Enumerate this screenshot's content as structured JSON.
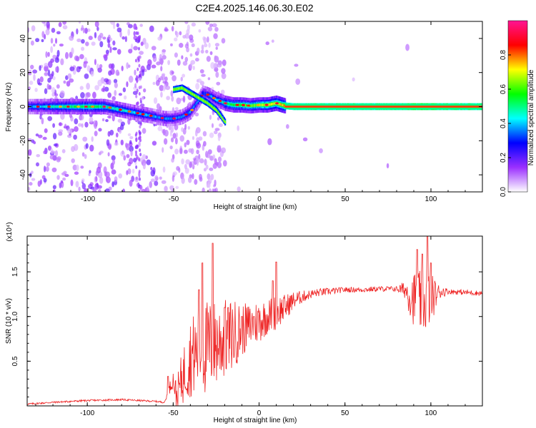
{
  "title": "C2E4.2025.146.06.30.E02",
  "chart_data": [
    {
      "type": "heatmap",
      "xlabel": "Height of straight line (km)",
      "ylabel": "Frequency (Hz)",
      "xlim": [
        -135,
        130
      ],
      "ylim": [
        -50,
        50
      ],
      "x_ticks": [
        -100,
        -50,
        0,
        50,
        100
      ],
      "x_tick_labels": [
        "-100",
        "-50",
        "0",
        "50",
        "100"
      ],
      "y_ticks": [
        -40,
        -20,
        0,
        20,
        40
      ],
      "y_tick_labels": [
        "-40",
        "-20",
        "0",
        "20",
        "40"
      ],
      "colorbar": {
        "label": "Normalized spectral amplitude",
        "range": [
          0,
          1
        ],
        "ticks": [
          0.0,
          0.2,
          0.4,
          0.6,
          0.8
        ],
        "tick_labels": [
          "0.0",
          "0.2",
          "0.4",
          "0.6",
          "0.8"
        ],
        "colors": [
          "#ffffff",
          "#9b30ff",
          "#0000ff",
          "#00ffff",
          "#00ff00",
          "#ffff00",
          "#ff0000",
          "#ff1493"
        ]
      },
      "ridge": {
        "x": [
          -133,
          -120,
          -110,
          -100,
          -90,
          -85,
          -80,
          -75,
          -70,
          -65,
          -60,
          -55,
          -50,
          -45,
          -40,
          -38,
          -35,
          -33,
          -30,
          -28,
          -25,
          -22,
          -20,
          -15,
          -10,
          -5,
          0,
          5,
          10,
          15,
          20,
          40,
          60,
          80,
          90,
          95,
          100,
          110,
          120,
          130
        ],
        "y": [
          0,
          0,
          0,
          0,
          0,
          -1,
          -2,
          -3,
          -4,
          -5,
          -6,
          -7,
          -7,
          -6,
          -3,
          0,
          4,
          8,
          7,
          6,
          4,
          3,
          2,
          1,
          1,
          0.5,
          1,
          1,
          2,
          0.5,
          0,
          0,
          0,
          0,
          0,
          0,
          0,
          0,
          0,
          0
        ],
        "amplitude": [
          0.35,
          0.45,
          0.5,
          0.55,
          0.5,
          0.45,
          0.45,
          0.4,
          0.4,
          0.4,
          0.35,
          0.35,
          0.35,
          0.35,
          0.35,
          0.35,
          0.35,
          0.3,
          0.35,
          0.4,
          0.4,
          0.45,
          0.5,
          0.55,
          0.6,
          0.6,
          0.65,
          0.7,
          0.7,
          0.75,
          0.8,
          0.8,
          0.8,
          0.8,
          0.85,
          0.9,
          0.85,
          0.8,
          0.8,
          0.8
        ]
      },
      "secondary_ridge": {
        "x": [
          -50,
          -45,
          -40,
          -35,
          -30,
          -25,
          -22,
          -20
        ],
        "y": [
          10,
          11,
          8,
          5,
          2,
          -2,
          -6,
          -9
        ]
      }
    },
    {
      "type": "line",
      "xlabel": "Height of straight line (km)",
      "ylabel": "SNR (10 * v/v)",
      "scale_label": "(x10⁴)",
      "xlim": [
        -135,
        130
      ],
      "ylim": [
        0,
        1.9
      ],
      "x_ticks": [
        -100,
        -50,
        0,
        50,
        100
      ],
      "x_tick_labels": [
        "-100",
        "-50",
        "0",
        "50",
        "100"
      ],
      "y_ticks": [
        0.5,
        1.0,
        1.5
      ],
      "y_tick_labels": [
        "0.5",
        "1.0",
        "1.5"
      ],
      "line_color": "#ee2222",
      "baseline": {
        "x": [
          -135,
          -120,
          -100,
          -80,
          -60,
          -55,
          -52,
          -50,
          -48,
          -45,
          -42,
          -40,
          -35,
          -30,
          -25,
          -20,
          -15,
          -10,
          -5,
          0,
          5,
          10,
          15,
          20,
          25,
          30,
          35,
          40,
          45,
          50,
          60,
          70,
          80,
          85,
          90,
          95,
          100,
          105,
          110,
          120,
          130
        ],
        "y": [
          0.02,
          0.04,
          0.06,
          0.07,
          0.05,
          0.04,
          0.2,
          0.3,
          0.1,
          0.3,
          0.45,
          0.55,
          0.6,
          0.65,
          0.7,
          0.75,
          0.8,
          0.85,
          0.9,
          0.95,
          1.0,
          1.05,
          1.1,
          1.18,
          1.22,
          1.25,
          1.27,
          1.28,
          1.29,
          1.3,
          1.3,
          1.31,
          1.31,
          1.3,
          1.2,
          1.15,
          1.2,
          1.28,
          1.28,
          1.27,
          1.26
        ]
      },
      "noise": {
        "x": [
          -135,
          -55,
          -50,
          -45,
          -40,
          -35,
          -30,
          -25,
          -20,
          -15,
          -10,
          -5,
          0,
          5,
          10,
          15,
          20,
          25,
          30,
          40,
          50,
          60,
          70,
          80,
          85,
          88,
          92,
          96,
          100,
          104,
          110,
          120,
          130
        ],
        "amp": [
          0.01,
          0.01,
          0.1,
          0.3,
          0.45,
          0.5,
          0.55,
          0.5,
          0.45,
          0.4,
          0.3,
          0.25,
          0.25,
          0.2,
          0.2,
          0.15,
          0.1,
          0.07,
          0.05,
          0.04,
          0.03,
          0.03,
          0.03,
          0.03,
          0.1,
          0.25,
          0.35,
          0.35,
          0.3,
          0.1,
          0.03,
          0.03,
          0.03
        ]
      },
      "peaks": {
        "x": [
          -53,
          -35,
          -33,
          -27,
          -20,
          -18,
          -10,
          -3,
          8,
          10,
          92,
          95,
          98,
          100
        ],
        "y": [
          0.33,
          1.3,
          1.6,
          1.82,
          1.1,
          1.1,
          1.0,
          1.0,
          1.4,
          1.61,
          1.75,
          1.7,
          1.9,
          1.6
        ]
      }
    }
  ]
}
